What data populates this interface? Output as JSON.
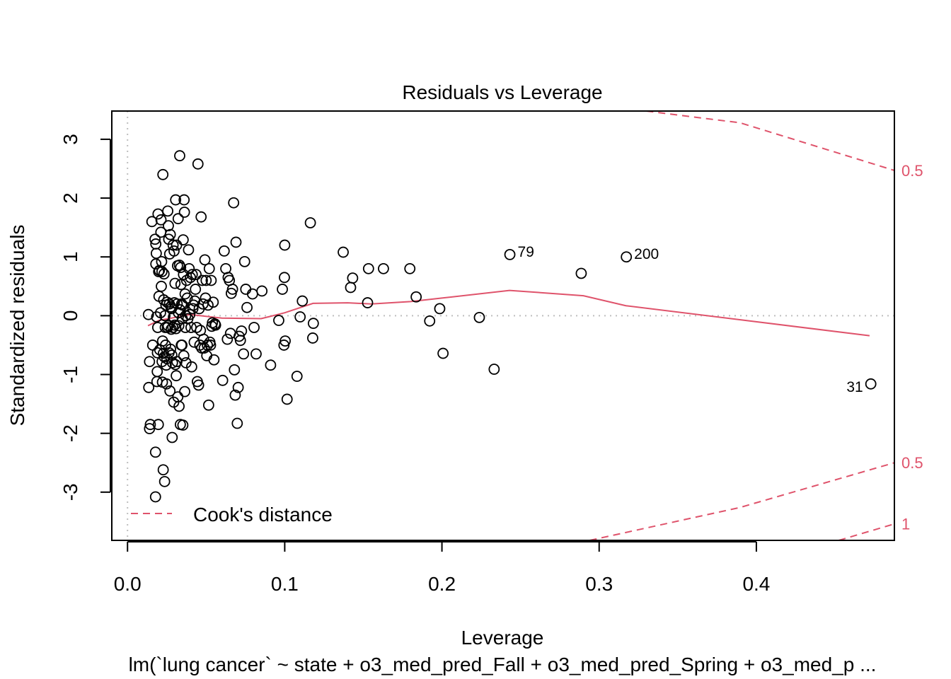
{
  "chart_data": {
    "type": "scatter",
    "title": "Residuals vs Leverage",
    "xlabel": "Leverage",
    "ylabel": "Standardized residuals",
    "subtitle": "lm(`lung cancer` ~ state + o3_med_pred_Fall + o3_med_pred_Spring + o3_med_p ...",
    "xlim": [
      -0.01,
      0.4878
    ],
    "ylim": [
      -3.82,
      3.48
    ],
    "xticks": [
      "0.0",
      "0.1",
      "0.2",
      "0.3",
      "0.4"
    ],
    "yticks": [
      "-3",
      "-2",
      "-1",
      "0",
      "1",
      "2",
      "3"
    ],
    "reference_lines": {
      "x": 0,
      "y": 0,
      "style": "dotted",
      "color": "#BEBEBE"
    },
    "legend": {
      "position": "bottom-left",
      "label": "Cook's distance",
      "color": "#DF536B"
    },
    "cook_contour_labels": [
      {
        "label": "0.5",
        "y": 2.47
      },
      {
        "label": "0.5",
        "y": -2.5
      },
      {
        "label": "1",
        "y": -3.54
      }
    ],
    "cook_contours": [
      {
        "level": 0.5,
        "side": "upper",
        "points": [
          [
            0.33,
            3.48
          ],
          [
            0.3897,
            3.28
          ],
          [
            0.4878,
            2.47
          ]
        ]
      },
      {
        "level": 0.5,
        "side": "lower",
        "points": [
          [
            0.294,
            -3.82
          ],
          [
            0.3897,
            -3.26
          ],
          [
            0.4878,
            -2.5
          ]
        ]
      },
      {
        "level": 1,
        "side": "lower",
        "points": [
          [
            0.4524,
            -3.82
          ],
          [
            0.4878,
            -3.54
          ]
        ]
      }
    ],
    "smooth_line": [
      [
        0.013,
        -0.17
      ],
      [
        0.02,
        -0.08
      ],
      [
        0.04,
        0.02
      ],
      [
        0.06,
        -0.04
      ],
      [
        0.085,
        -0.05
      ],
      [
        0.1,
        0.05
      ],
      [
        0.118,
        0.21
      ],
      [
        0.14,
        0.22
      ],
      [
        0.155,
        0.2
      ],
      [
        0.18,
        0.24
      ],
      [
        0.2,
        0.3
      ],
      [
        0.243,
        0.43
      ],
      [
        0.29,
        0.34
      ],
      [
        0.317,
        0.17
      ],
      [
        0.472,
        -0.34
      ]
    ],
    "labeled_points": [
      {
        "label": "79",
        "x": 0.2432,
        "y": 1.04
      },
      {
        "label": "200",
        "x": 0.3173,
        "y": 1.0
      },
      {
        "label": "31",
        "x": 0.4728,
        "y": -1.16
      }
    ],
    "points": [
      [
        0.0133,
        0.02
      ],
      [
        0.0135,
        -1.22
      ],
      [
        0.014,
        -0.78
      ],
      [
        0.014,
        -1.92
      ],
      [
        0.0145,
        -1.85
      ],
      [
        0.0155,
        1.6
      ],
      [
        0.016,
        -0.5
      ],
      [
        0.0175,
        1.3
      ],
      [
        0.0178,
        -2.32
      ],
      [
        0.0178,
        -3.08
      ],
      [
        0.018,
        0.88
      ],
      [
        0.018,
        1.22
      ],
      [
        0.0183,
        1.06
      ],
      [
        0.0185,
        -0.02
      ],
      [
        0.0187,
        -1.12
      ],
      [
        0.0189,
        -0.95
      ],
      [
        0.019,
        -0.63
      ],
      [
        0.0192,
        -0.2
      ],
      [
        0.0194,
        1.73
      ],
      [
        0.0196,
        -1.85
      ],
      [
        0.0198,
        0.75
      ],
      [
        0.02,
        0.33
      ],
      [
        0.0203,
        0.77
      ],
      [
        0.0205,
        -0.58
      ],
      [
        0.021,
        0.05
      ],
      [
        0.0212,
        1.42
      ],
      [
        0.0213,
        1.63
      ],
      [
        0.0215,
        0.5
      ],
      [
        0.0217,
        0.92
      ],
      [
        0.0219,
        0.75
      ],
      [
        0.022,
        -0.78
      ],
      [
        0.0222,
        -1.13
      ],
      [
        0.0223,
        -0.43
      ],
      [
        0.0225,
        2.4
      ],
      [
        0.0227,
        -2.62
      ],
      [
        0.0228,
        -0.64
      ],
      [
        0.023,
        0.27
      ],
      [
        0.0232,
        0.71
      ],
      [
        0.0234,
        -0.7
      ],
      [
        0.0236,
        -2.82
      ],
      [
        0.0238,
        0.0
      ],
      [
        0.024,
        -0.2
      ],
      [
        0.0242,
        -0.5
      ],
      [
        0.0244,
        0.18
      ],
      [
        0.0246,
        -0.84
      ],
      [
        0.0248,
        -1.16
      ],
      [
        0.025,
        -0.73
      ],
      [
        0.0252,
        0.23
      ],
      [
        0.0254,
        -0.2
      ],
      [
        0.0256,
        1.78
      ],
      [
        0.0258,
        -0.17
      ],
      [
        0.026,
        1.53
      ],
      [
        0.0262,
        1.3
      ],
      [
        0.0264,
        -0.63
      ],
      [
        0.0266,
        0.2
      ],
      [
        0.0268,
        1.05
      ],
      [
        0.027,
        -1.28
      ],
      [
        0.0272,
        1.38
      ],
      [
        0.0274,
        -0.57
      ],
      [
        0.0276,
        0.15
      ],
      [
        0.0278,
        -0.23
      ],
      [
        0.028,
        0.12
      ],
      [
        0.0282,
        -0.67
      ],
      [
        0.0284,
        -2.07
      ],
      [
        0.0286,
        -0.8
      ],
      [
        0.0288,
        -0.2
      ],
      [
        0.029,
        1.2
      ],
      [
        0.0292,
        -0.02
      ],
      [
        0.0294,
        -1.47
      ],
      [
        0.0296,
        1.1
      ],
      [
        0.0298,
        0.22
      ],
      [
        0.03,
        -0.16
      ],
      [
        0.0302,
        0.55
      ],
      [
        0.0304,
        -0.83
      ],
      [
        0.0306,
        1.97
      ],
      [
        0.0308,
        -0.22
      ],
      [
        0.031,
        -1.02
      ],
      [
        0.0312,
        1.2
      ],
      [
        0.0314,
        -0.78
      ],
      [
        0.0316,
        0.2
      ],
      [
        0.0318,
        0.85
      ],
      [
        0.032,
        -1.38
      ],
      [
        0.0322,
        1.65
      ],
      [
        0.0324,
        0.05
      ],
      [
        0.0326,
        -0.17
      ],
      [
        0.0328,
        -1.54
      ],
      [
        0.033,
        0.86
      ],
      [
        0.0332,
        2.72
      ],
      [
        0.0334,
        0.1
      ],
      [
        0.0336,
        -1.85
      ],
      [
        0.0338,
        0.82
      ],
      [
        0.034,
        0.53
      ],
      [
        0.0342,
        -0.5
      ],
      [
        0.0344,
        0.2
      ],
      [
        0.0346,
        -0.5
      ],
      [
        0.0348,
        -0.05
      ],
      [
        0.035,
        0.18
      ],
      [
        0.0352,
        -1.86
      ],
      [
        0.0354,
        1.29
      ],
      [
        0.0356,
        0.7
      ],
      [
        0.0358,
        -0.68
      ],
      [
        0.036,
        1.97
      ],
      [
        0.0362,
        1.76
      ],
      [
        0.0364,
        -1.29
      ],
      [
        0.0366,
        0.37
      ],
      [
        0.0368,
        -0.2
      ],
      [
        0.037,
        0.0
      ],
      [
        0.0372,
        -0.8
      ],
      [
        0.0376,
        0.6
      ],
      [
        0.038,
        0.3
      ],
      [
        0.0384,
        -0.05
      ],
      [
        0.0388,
        1.12
      ],
      [
        0.0392,
        0.8
      ],
      [
        0.0396,
        0.02
      ],
      [
        0.04,
        0.65
      ],
      [
        0.0404,
        -0.2
      ],
      [
        0.0408,
        -0.87
      ],
      [
        0.0412,
        0.7
      ],
      [
        0.0416,
        0.12
      ],
      [
        0.042,
        0.18
      ],
      [
        0.0424,
        -0.45
      ],
      [
        0.0428,
        0.25
      ],
      [
        0.0432,
        0.45
      ],
      [
        0.0436,
        0.7
      ],
      [
        0.044,
        -0.2
      ],
      [
        0.0444,
        -1.12
      ],
      [
        0.0448,
        2.58
      ],
      [
        0.0452,
        -1.18
      ],
      [
        0.0456,
        0.12
      ],
      [
        0.046,
        -0.5
      ],
      [
        0.0464,
        -0.25
      ],
      [
        0.0468,
        1.68
      ],
      [
        0.0472,
        -0.55
      ],
      [
        0.0476,
        0.6
      ],
      [
        0.048,
        0.2
      ],
      [
        0.0484,
        -0.4
      ],
      [
        0.0488,
        -0.55
      ],
      [
        0.0492,
        0.95
      ],
      [
        0.0496,
        0.3
      ],
      [
        0.05,
        0.6
      ],
      [
        0.0504,
        -0.68
      ],
      [
        0.0508,
        -0.5
      ],
      [
        0.0512,
        0.18
      ],
      [
        0.0516,
        -1.52
      ],
      [
        0.052,
        0.8
      ],
      [
        0.0524,
        -0.45
      ],
      [
        0.0528,
        -0.5
      ],
      [
        0.0532,
        0.6
      ],
      [
        0.0536,
        -0.18
      ],
      [
        0.054,
        -0.12
      ],
      [
        0.0545,
        0.23
      ],
      [
        0.055,
        -0.75
      ],
      [
        0.0556,
        -0.14
      ],
      [
        0.056,
        -0.16
      ],
      [
        0.0605,
        -1.1
      ],
      [
        0.0615,
        1.1
      ],
      [
        0.0625,
        0.8
      ],
      [
        0.0635,
        -0.4
      ],
      [
        0.064,
        0.65
      ],
      [
        0.0648,
        0.6
      ],
      [
        0.0655,
        -0.3
      ],
      [
        0.066,
        0.38
      ],
      [
        0.0668,
        0.45
      ],
      [
        0.0675,
        1.92
      ],
      [
        0.068,
        -0.92
      ],
      [
        0.0685,
        -1.35
      ],
      [
        0.069,
        1.25
      ],
      [
        0.0698,
        -1.83
      ],
      [
        0.0704,
        -1.22
      ],
      [
        0.071,
        -0.35
      ],
      [
        0.0718,
        -0.42
      ],
      [
        0.0725,
        -0.26
      ],
      [
        0.0738,
        -0.65
      ],
      [
        0.0745,
        0.92
      ],
      [
        0.0752,
        0.45
      ],
      [
        0.076,
        0.14
      ],
      [
        0.0795,
        0.37
      ],
      [
        0.0805,
        -0.2
      ],
      [
        0.0818,
        -0.65
      ],
      [
        0.0855,
        0.42
      ],
      [
        0.091,
        -0.84
      ],
      [
        0.0962,
        -0.08
      ],
      [
        0.0985,
        0.45
      ],
      [
        0.0995,
        -0.5
      ],
      [
        0.0998,
        0.65
      ],
      [
        0.1,
        1.2
      ],
      [
        0.1003,
        -0.43
      ],
      [
        0.1015,
        -1.42
      ],
      [
        0.1078,
        -1.03
      ],
      [
        0.1098,
        -0.02
      ],
      [
        0.1112,
        0.25
      ],
      [
        0.1163,
        1.58
      ],
      [
        0.1178,
        -0.38
      ],
      [
        0.1182,
        -0.13
      ],
      [
        0.1372,
        1.08
      ],
      [
        0.1419,
        0.48
      ],
      [
        0.1432,
        0.64
      ],
      [
        0.1527,
        0.22
      ],
      [
        0.1533,
        0.8
      ],
      [
        0.1628,
        0.8
      ],
      [
        0.1796,
        0.8
      ],
      [
        0.1836,
        0.32
      ],
      [
        0.1922,
        -0.09
      ],
      [
        0.1986,
        0.12
      ],
      [
        0.2007,
        -0.64
      ],
      [
        0.2238,
        -0.03
      ],
      [
        0.2332,
        -0.91
      ],
      [
        0.2432,
        1.04
      ],
      [
        0.2886,
        0.72
      ],
      [
        0.3173,
        1.0
      ],
      [
        0.4728,
        -1.16
      ]
    ]
  }
}
